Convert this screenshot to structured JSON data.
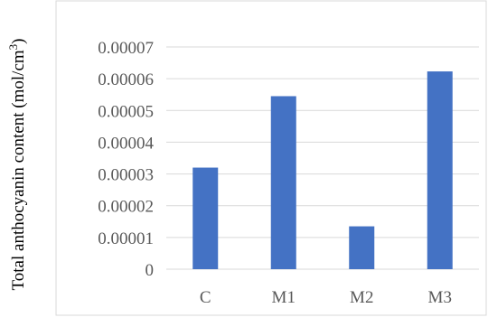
{
  "chart_data": {
    "type": "bar",
    "title": "",
    "xlabel": "",
    "ylabel": "Total anthocyanin content (mol/cm",
    "ylabel_superscript": "3",
    "ylabel_close": ")",
    "categories": [
      "C",
      "M1",
      "M2",
      "M3"
    ],
    "values": [
      3.2e-05,
      5.45e-05,
      1.35e-05,
      6.23e-05
    ],
    "ylim": [
      0,
      7e-05
    ],
    "yticks": [
      "0",
      "0.00001",
      "0.00002",
      "0.00003",
      "0.00004",
      "0.00005",
      "0.00006",
      "0.00007"
    ],
    "grid": true,
    "legend": "none",
    "colors": {
      "bar": "#4472C4",
      "grid": "#D9D9D9",
      "axis": "#D9D9D9",
      "frame": "#D9D9D9",
      "tick_text": "#595959"
    }
  }
}
